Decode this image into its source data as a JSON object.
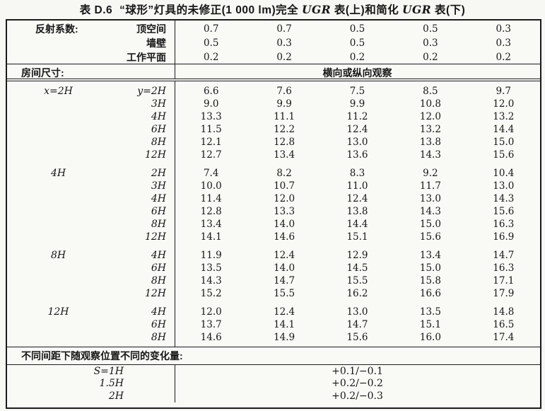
{
  "title": {
    "table_label": "表 D.6",
    "part1": "“球形”灯具的未修正(1 000 lm)完全 ",
    "ugr": "UGR",
    "part2": " 表(上)和简化 ",
    "part3": " 表(下)"
  },
  "reflectance": {
    "label": "反射系数:",
    "rows": [
      {
        "label": "顶空间",
        "values": [
          "0.7",
          "0.7",
          "0.5",
          "0.5",
          "0.3"
        ]
      },
      {
        "label": "墙壁",
        "values": [
          "0.5",
          "0.3",
          "0.5",
          "0.3",
          "0.3"
        ]
      },
      {
        "label": "工作平面",
        "values": [
          "0.2",
          "0.2",
          "0.2",
          "0.2",
          "0.2"
        ]
      }
    ]
  },
  "room_size": {
    "label": "房间尺寸:",
    "observation": "横向或纵向观察"
  },
  "blocks": [
    {
      "x": "x=2H",
      "rows": [
        {
          "y": "y=2H",
          "values": [
            "6.6",
            "7.6",
            "7.5",
            "8.5",
            "9.7"
          ]
        },
        {
          "y": "3H",
          "values": [
            "9.0",
            "9.9",
            "9.9",
            "10.8",
            "12.0"
          ]
        },
        {
          "y": "4H",
          "values": [
            "13.3",
            "11.1",
            "11.2",
            "12.0",
            "13.2"
          ]
        },
        {
          "y": "6H",
          "values": [
            "11.5",
            "12.2",
            "12.4",
            "13.2",
            "14.4"
          ]
        },
        {
          "y": "8H",
          "values": [
            "12.1",
            "12.8",
            "13.0",
            "13.8",
            "15.0"
          ]
        },
        {
          "y": "12H",
          "values": [
            "12.7",
            "13.4",
            "13.6",
            "14.3",
            "15.6"
          ]
        }
      ]
    },
    {
      "x": "4H",
      "rows": [
        {
          "y": "2H",
          "values": [
            "7.4",
            "8.2",
            "8.3",
            "9.2",
            "10.4"
          ]
        },
        {
          "y": "3H",
          "values": [
            "10.0",
            "10.7",
            "11.0",
            "11.7",
            "13.0"
          ]
        },
        {
          "y": "4H",
          "values": [
            "11.4",
            "12.0",
            "12.4",
            "13.0",
            "14.3"
          ]
        },
        {
          "y": "6H",
          "values": [
            "12.8",
            "13.3",
            "13.8",
            "14.3",
            "15.6"
          ]
        },
        {
          "y": "8H",
          "values": [
            "13.4",
            "14.0",
            "14.4",
            "15.0",
            "16.3"
          ]
        },
        {
          "y": "12H",
          "values": [
            "14.1",
            "14.6",
            "15.1",
            "15.6",
            "16.9"
          ]
        }
      ]
    },
    {
      "x": "8H",
      "rows": [
        {
          "y": "4H",
          "values": [
            "11.9",
            "12.4",
            "12.9",
            "13.4",
            "14.7"
          ]
        },
        {
          "y": "6H",
          "values": [
            "13.5",
            "14.0",
            "14.5",
            "15.0",
            "16.3"
          ]
        },
        {
          "y": "8H",
          "values": [
            "14.3",
            "14.7",
            "15.5",
            "15.8",
            "17.1"
          ]
        },
        {
          "y": "12H",
          "values": [
            "15.2",
            "15.5",
            "16.2",
            "16.6",
            "17.9"
          ]
        }
      ]
    },
    {
      "x": "12H",
      "rows": [
        {
          "y": "4H",
          "values": [
            "12.0",
            "12.4",
            "13.0",
            "13.5",
            "14.8"
          ]
        },
        {
          "y": "6H",
          "values": [
            "13.7",
            "14.1",
            "14.7",
            "15.1",
            "16.5"
          ]
        },
        {
          "y": "8H",
          "values": [
            "14.6",
            "14.9",
            "15.6",
            "16.0",
            "17.4"
          ]
        }
      ]
    }
  ],
  "variation": {
    "label": "不同间距下随观察位置不同的变化量:",
    "rows": [
      {
        "label": "S=1H",
        "value": "+0.1/−0.1"
      },
      {
        "label": "1.5H",
        "value": "+0.2/−0.2"
      },
      {
        "label": "2H",
        "value": "+0.2/−0.3"
      }
    ]
  }
}
